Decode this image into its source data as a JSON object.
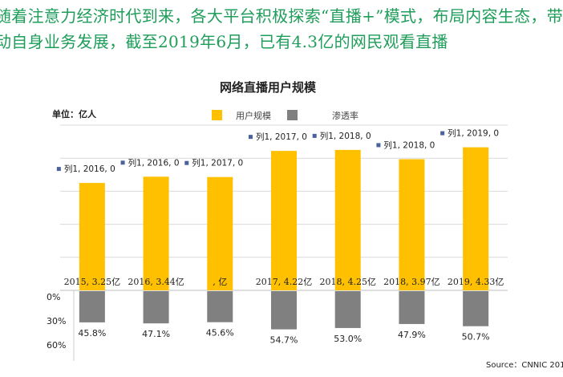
{
  "headline": {
    "line1": "随着注意力经济时代到来，各大平台积极探索“直播+”模式，布局内容生态，带",
    "line2": "动自身业务发展，截至2019年6月，已有4.3亿的网民观看直播"
  },
  "chart_data": {
    "type": "bar",
    "title": "网络直播用户规模",
    "unit_label": "单位：亿人",
    "legend": [
      "用户规模",
      "渗透率"
    ],
    "legend_position": "top",
    "grid": true,
    "colors": {
      "users": "#ffc000",
      "rate": "#808080",
      "marker": "#4a6199"
    },
    "series": [
      {
        "name": "用户规模",
        "values": [
          3.25,
          3.44,
          3.43,
          4.22,
          4.25,
          3.97,
          4.33
        ],
        "data_labels": [
          "2015, 3.25亿",
          "2016, 3.44亿",
          ", 亿",
          "2017, 4.22亿",
          "2018, 4.25亿",
          "2018, 3.97亿",
          "2019, 4.33亿"
        ]
      },
      {
        "name": "渗透率",
        "values": [
          45.8,
          47.1,
          45.6,
          54.7,
          53.0,
          47.9,
          50.7
        ],
        "data_labels": [
          "45.8%",
          "47.1%",
          "45.6%",
          "54.7%",
          "53.0%",
          "47.9%",
          "50.7%"
        ]
      },
      {
        "name": "列1",
        "data_labels": [
          "列1, 2016, 0",
          "列1, 2016, 0",
          "列1, 2017, 0",
          "列1, 2017, 0",
          "列1, 2018, 0",
          "列1, 2018, 0",
          "列1, 2019, 0"
        ]
      }
    ],
    "rate_axis_ticks": [
      "0%",
      "30%",
      "60%"
    ],
    "ylim": [
      0,
      5
    ],
    "source": "Source：CNNIC 201"
  }
}
